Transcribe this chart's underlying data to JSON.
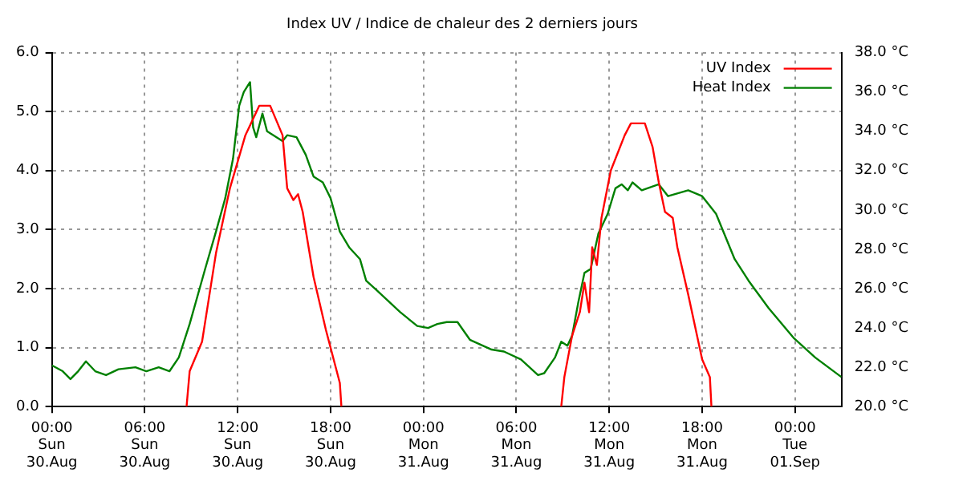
{
  "chart_data": {
    "type": "line",
    "title": "Index UV / Indice de chaleur des 2 derniers jours",
    "xlim": [
      "--08-30T00:00",
      "--09-01T03:00"
    ],
    "xticks": [
      {
        "value": "--08-30T00:00",
        "label": "00:00\nSun\n30.Aug"
      },
      {
        "value": "--08-30T06:00",
        "label": "06:00\nSun\n30.Aug"
      },
      {
        "value": "--08-30T12:00",
        "label": "12:00\nSun\n30.Aug"
      },
      {
        "value": "--08-30T18:00",
        "label": "18:00\nSun\n30.Aug"
      },
      {
        "value": "--08-31T00:00",
        "label": "00:00\nMon\n31.Aug"
      },
      {
        "value": "--08-31T06:00",
        "label": "06:00\nMon\n31.Aug"
      },
      {
        "value": "--08-31T12:00",
        "label": "12:00\nMon\n31.Aug"
      },
      {
        "value": "--08-31T18:00",
        "label": "18:00\nMon\n31.Aug"
      },
      {
        "value": "--09-01T00:00",
        "label": "00:00\nTue\n01.Sep"
      }
    ],
    "ylim": [
      0,
      6
    ],
    "yticks": [
      {
        "value": 0,
        "label": "0.0"
      },
      {
        "value": 1,
        "label": "1.0"
      },
      {
        "value": 2,
        "label": "2.0"
      },
      {
        "value": 3,
        "label": "3.0"
      },
      {
        "value": 4,
        "label": "4.0"
      },
      {
        "value": 5,
        "label": "5.0"
      },
      {
        "value": 6,
        "label": "6.0"
      }
    ],
    "y2lim": [
      20,
      38
    ],
    "y2ticks": [
      {
        "value": 20,
        "label": "20.0 °C"
      },
      {
        "value": 22,
        "label": "22.0 °C"
      },
      {
        "value": 24,
        "label": "24.0 °C"
      },
      {
        "value": 26,
        "label": "26.0 °C"
      },
      {
        "value": 28,
        "label": "28.0 °C"
      },
      {
        "value": 30,
        "label": "30.0 °C"
      },
      {
        "value": 32,
        "label": "32.0 °C"
      },
      {
        "value": 34,
        "label": "34.0 °C"
      },
      {
        "value": 36,
        "label": "36.0 °C"
      },
      {
        "value": 38,
        "label": "38.0 °C"
      }
    ],
    "grid": true,
    "legend": "top right",
    "marker": "none",
    "line_style": "solid",
    "series": [
      {
        "name": "UV Index",
        "color": "#ff0000",
        "x": [
          "--08-30T08:42",
          "--08-30T08:54",
          "--08-30T09:42",
          "--08-30T10:36",
          "--08-30T11:30",
          "--08-30T12:30",
          "--08-30T13:24",
          "--08-30T14:06",
          "--08-30T14:54",
          "--08-30T15:12",
          "--08-30T15:36",
          "--08-30T15:54",
          "--08-30T16:12",
          "--08-30T16:54",
          "--08-30T17:42",
          "--08-30T18:06",
          "--08-30T18:36",
          "--08-30T18:42",
          "--08-31T01:00",
          "--08-31T08:54",
          "--08-31T09:06",
          "--08-31T09:36",
          "--08-31T10:06",
          "--08-31T10:24",
          "--08-31T10:42",
          "--08-31T10:54",
          "--08-31T11:12",
          "--08-31T11:30",
          "--08-31T12:06",
          "--08-31T13:00",
          "--08-31T13:24",
          "--08-31T14:18",
          "--08-31T14:48",
          "--08-31T15:12",
          "--08-31T15:36",
          "--08-31T16:06",
          "--08-31T16:24",
          "--08-31T17:06",
          "--08-31T18:00",
          "--08-31T18:30",
          "--08-31T18:36"
        ],
        "values": [
          0,
          0.6,
          1.1,
          2.6,
          3.7,
          4.6,
          5.1,
          5.1,
          4.6,
          3.7,
          3.5,
          3.6,
          3.3,
          2.2,
          1.3,
          0.9,
          0.4,
          0,
          null,
          0,
          0.5,
          1.2,
          1.6,
          2.1,
          1.6,
          2.7,
          2.4,
          3.2,
          4,
          4.6,
          4.8,
          4.8,
          4.4,
          3.8,
          3.3,
          3.2,
          2.7,
          1.9,
          0.8,
          0.5,
          0
        ]
      },
      {
        "name": "Heat Index",
        "color": "#008000",
        "axis": "y2",
        "x": [
          "--08-30T00:00",
          "--08-30T00:42",
          "--08-30T01:12",
          "--08-30T01:42",
          "--08-30T02:12",
          "--08-30T02:48",
          "--08-30T03:30",
          "--08-30T04:18",
          "--08-30T05:24",
          "--08-30T06:06",
          "--08-30T06:54",
          "--08-30T07:36",
          "--08-30T08:12",
          "--08-30T08:54",
          "--08-30T09:54",
          "--08-30T10:36",
          "--08-30T11:12",
          "--08-30T11:42",
          "--08-30T12:06",
          "--08-30T12:24",
          "--08-30T12:48",
          "--08-30T13:00",
          "--08-30T13:12",
          "--08-30T13:36",
          "--08-30T13:54",
          "--08-30T14:54",
          "--08-30T15:12",
          "--08-30T15:48",
          "--08-30T16:24",
          "--08-30T16:54",
          "--08-30T17:30",
          "--08-30T18:00",
          "--08-30T18:36",
          "--08-30T19:12",
          "--08-30T19:54",
          "--08-30T20:18",
          "--08-30T21:00",
          "--08-30T22:30",
          "--08-30T23:36",
          "--08-31T00:18",
          "--08-31T00:54",
          "--08-31T01:30",
          "--08-31T02:12",
          "--08-31T03:00",
          "--08-31T04:24",
          "--08-31T05:12",
          "--08-31T06:18",
          "--08-31T07:24",
          "--08-31T07:48",
          "--08-31T08:30",
          "--08-31T08:54",
          "--08-31T09:18",
          "--08-31T09:36",
          "--08-31T10:00",
          "--08-31T10:24",
          "--08-31T10:48",
          "--08-31T11:18",
          "--08-31T11:54",
          "--08-31T12:24",
          "--08-31T12:48",
          "--08-31T13:12",
          "--08-31T13:30",
          "--08-31T14:06",
          "--08-31T15:12",
          "--08-31T15:48",
          "--08-31T17:06",
          "--08-31T18:00",
          "--08-31T18:54",
          "--08-31T20:06",
          "--08-31T21:00",
          "--08-31T22:18",
          "--08-31T23:54",
          "--09-01T01:18",
          "--09-01T03:00"
        ],
        "values": [
          22.1,
          21.8,
          21.4,
          21.8,
          22.3,
          21.8,
          21.6,
          21.9,
          22,
          21.8,
          22,
          21.8,
          22.5,
          24.2,
          27,
          28.9,
          30.6,
          32.6,
          35.3,
          36,
          36.5,
          34.2,
          33.7,
          34.9,
          34,
          33.5,
          33.8,
          33.7,
          32.8,
          31.7,
          31.4,
          30.6,
          28.9,
          28.1,
          27.5,
          26.4,
          25.9,
          24.8,
          24.1,
          24,
          24.2,
          24.3,
          24.3,
          23.4,
          22.9,
          22.8,
          22.4,
          21.6,
          21.7,
          22.5,
          23.3,
          23.1,
          23.6,
          25.3,
          26.8,
          27,
          28.8,
          29.8,
          31.1,
          31.3,
          31,
          31.4,
          31,
          31.3,
          30.7,
          31,
          30.7,
          29.8,
          27.5,
          26.4,
          25,
          23.5,
          22.5,
          21.5
        ]
      }
    ]
  }
}
